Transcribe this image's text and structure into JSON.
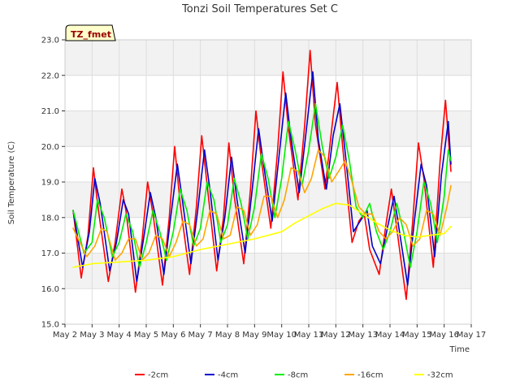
{
  "chart_data": {
    "type": "line",
    "title": "Tonzi Soil Temperatures Set C",
    "xlabel": "Time",
    "ylabel": "Soil Temperature (C)",
    "ylim": [
      15.0,
      23.0
    ],
    "xlim": [
      2,
      17
    ],
    "y_ticks": [
      "15.0",
      "16.0",
      "17.0",
      "18.0",
      "19.0",
      "20.0",
      "21.0",
      "22.0",
      "23.0"
    ],
    "x_ticks": [
      "May 2",
      "May 3",
      "May 4",
      "May 5",
      "May 6",
      "May 7",
      "May 8",
      "May 9",
      "May 10",
      "May 11",
      "May 12",
      "May 13",
      "May 14",
      "May 15",
      "May 16",
      "May 17"
    ],
    "annotation": "TZ_fmet",
    "grid": true,
    "legend_position": "bottom",
    "band_colors": [
      "#ffffff",
      "#f2f2f2"
    ],
    "series": [
      {
        "name": "-2cm",
        "color": "#ff0000",
        "x": [
          2.3,
          2.6,
          2.85,
          3.05,
          3.2,
          3.6,
          3.85,
          4.1,
          4.25,
          4.6,
          4.85,
          5.05,
          5.25,
          5.6,
          5.85,
          6.05,
          6.25,
          6.6,
          6.85,
          7.05,
          7.25,
          7.6,
          7.85,
          8.05,
          8.25,
          8.6,
          8.85,
          9.05,
          9.25,
          9.6,
          9.85,
          10.05,
          10.25,
          10.6,
          10.85,
          11.05,
          11.25,
          11.6,
          11.85,
          12.05,
          12.25,
          12.6,
          12.85,
          13.05,
          13.25,
          13.6,
          13.85,
          14.05,
          14.25,
          14.6,
          14.85,
          15.05,
          15.25,
          15.6,
          15.85,
          16.05,
          16.25
        ],
        "y": [
          18.2,
          16.3,
          17.5,
          19.4,
          18.4,
          16.2,
          17.3,
          18.8,
          18.2,
          15.9,
          17.4,
          19.0,
          18.1,
          16.1,
          18.0,
          20.0,
          18.4,
          16.4,
          18.3,
          20.3,
          18.9,
          16.5,
          18.0,
          20.1,
          18.6,
          16.7,
          18.8,
          21.0,
          19.6,
          17.7,
          19.9,
          22.1,
          20.5,
          18.5,
          20.6,
          22.7,
          20.6,
          18.8,
          20.5,
          21.8,
          20.0,
          17.3,
          17.9,
          18.1,
          17.1,
          16.4,
          17.8,
          18.8,
          17.7,
          15.7,
          18.0,
          20.1,
          19.1,
          16.6,
          19.6,
          21.3,
          19.3
        ]
      },
      {
        "name": "-4cm",
        "color": "#0000cc",
        "x": [
          2.3,
          2.65,
          2.9,
          3.1,
          3.3,
          3.65,
          3.9,
          4.15,
          4.35,
          4.65,
          4.9,
          5.15,
          5.35,
          5.65,
          5.9,
          6.15,
          6.35,
          6.65,
          6.9,
          7.15,
          7.35,
          7.65,
          7.9,
          8.15,
          8.35,
          8.65,
          8.9,
          9.15,
          9.35,
          9.65,
          9.9,
          10.15,
          10.35,
          10.65,
          10.9,
          11.15,
          11.35,
          11.65,
          11.9,
          12.15,
          12.35,
          12.65,
          12.9,
          13.15,
          13.35,
          13.65,
          13.9,
          14.15,
          14.35,
          14.65,
          14.9,
          15.15,
          15.35,
          15.65,
          15.9,
          16.15,
          16.25
        ],
        "y": [
          18.2,
          16.6,
          17.6,
          19.1,
          18.4,
          16.5,
          17.3,
          18.5,
          18.1,
          16.2,
          17.4,
          18.7,
          18.0,
          16.4,
          18.0,
          19.5,
          18.4,
          16.7,
          18.2,
          19.9,
          18.8,
          16.8,
          18.0,
          19.7,
          18.5,
          17.0,
          18.7,
          20.5,
          19.4,
          17.9,
          19.7,
          21.5,
          20.2,
          18.7,
          20.4,
          22.1,
          20.2,
          18.8,
          20.3,
          21.2,
          19.8,
          17.6,
          17.9,
          18.2,
          17.2,
          16.7,
          17.7,
          18.6,
          17.6,
          16.1,
          17.9,
          19.5,
          18.9,
          16.9,
          19.2,
          20.7,
          19.5
        ]
      },
      {
        "name": "-8cm",
        "color": "#00ee00",
        "x": [
          2.3,
          2.7,
          3.0,
          3.2,
          3.45,
          3.75,
          4.0,
          4.25,
          4.5,
          4.75,
          5.0,
          5.25,
          5.5,
          5.75,
          6.0,
          6.25,
          6.5,
          6.75,
          7.0,
          7.25,
          7.5,
          7.75,
          8.0,
          8.25,
          8.5,
          8.75,
          9.0,
          9.25,
          9.5,
          9.75,
          10.0,
          10.25,
          10.5,
          10.75,
          11.0,
          11.25,
          11.5,
          11.75,
          12.0,
          12.25,
          12.5,
          12.75,
          13.0,
          13.25,
          13.5,
          13.75,
          14.0,
          14.25,
          14.5,
          14.75,
          15.0,
          15.25,
          15.5,
          15.75,
          16.0,
          16.15,
          16.25
        ],
        "y": [
          18.2,
          17.0,
          17.3,
          18.5,
          18.0,
          16.9,
          17.3,
          18.1,
          17.6,
          16.6,
          17.3,
          18.2,
          17.6,
          16.8,
          17.6,
          18.8,
          18.2,
          17.2,
          17.7,
          19.0,
          18.5,
          17.3,
          17.8,
          19.1,
          18.4,
          17.4,
          18.3,
          19.8,
          19.1,
          18.0,
          19.1,
          20.7,
          19.9,
          18.9,
          19.9,
          21.2,
          20.0,
          19.1,
          19.7,
          20.6,
          19.6,
          18.3,
          18.0,
          18.4,
          17.6,
          17.1,
          17.6,
          18.4,
          17.6,
          16.6,
          17.6,
          19.0,
          18.4,
          17.3,
          18.6,
          19.9,
          19.6
        ]
      },
      {
        "name": "-16cm",
        "color": "#ffa500",
        "x": [
          2.3,
          2.8,
          3.1,
          3.35,
          3.55,
          3.85,
          4.1,
          4.35,
          4.6,
          4.85,
          5.1,
          5.35,
          5.6,
          5.85,
          6.1,
          6.35,
          6.6,
          6.85,
          7.1,
          7.35,
          7.6,
          7.85,
          8.1,
          8.35,
          8.6,
          8.85,
          9.1,
          9.35,
          9.6,
          9.85,
          10.1,
          10.35,
          10.6,
          10.85,
          11.1,
          11.35,
          11.6,
          11.85,
          12.1,
          12.35,
          12.6,
          12.85,
          13.1,
          13.35,
          13.6,
          13.85,
          14.1,
          14.35,
          14.6,
          14.85,
          15.1,
          15.35,
          15.6,
          15.85,
          16.1,
          16.25
        ],
        "y": [
          17.7,
          16.9,
          17.2,
          17.7,
          17.6,
          16.8,
          17.0,
          17.4,
          17.4,
          16.8,
          17.0,
          17.5,
          17.4,
          16.9,
          17.3,
          17.9,
          17.8,
          17.2,
          17.4,
          18.2,
          18.1,
          17.4,
          17.5,
          18.3,
          18.2,
          17.5,
          17.8,
          18.6,
          18.6,
          18.0,
          18.5,
          19.4,
          19.3,
          18.7,
          19.1,
          19.9,
          19.7,
          19.0,
          19.3,
          19.6,
          19.0,
          18.3,
          18.1,
          18.1,
          17.6,
          17.4,
          17.6,
          18.0,
          17.8,
          17.2,
          17.4,
          18.2,
          18.1,
          17.5,
          18.3,
          18.9
        ]
      },
      {
        "name": "-32cm",
        "color": "#ffff00",
        "x": [
          2.3,
          3.0,
          4.0,
          5.0,
          6.0,
          7.0,
          8.0,
          9.0,
          10.0,
          10.5,
          11.0,
          11.5,
          12.0,
          12.5,
          13.0,
          13.5,
          14.0,
          14.5,
          15.0,
          15.5,
          16.0,
          16.25
        ],
        "y": [
          16.6,
          16.7,
          16.75,
          16.8,
          16.9,
          17.1,
          17.25,
          17.4,
          17.6,
          17.85,
          18.05,
          18.25,
          18.4,
          18.35,
          18.1,
          17.85,
          17.65,
          17.5,
          17.45,
          17.5,
          17.55,
          17.75
        ]
      }
    ]
  }
}
